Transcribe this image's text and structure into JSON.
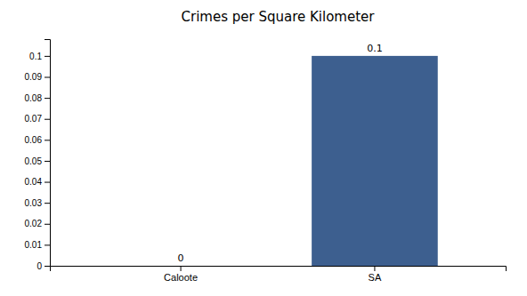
{
  "chart_data": {
    "type": "bar",
    "title": "Crimes per Square Kilometer",
    "categories": [
      "Caloote",
      "SA"
    ],
    "values": [
      0.0,
      0.1
    ],
    "color": "#3d5f8f",
    "ylim": [
      0,
      0.108
    ],
    "yticks": [
      0,
      0.01,
      0.02,
      0.03,
      0.04,
      0.05,
      0.06,
      0.07,
      0.08,
      0.09,
      0.1
    ],
    "grid": false,
    "data_labels": true
  }
}
